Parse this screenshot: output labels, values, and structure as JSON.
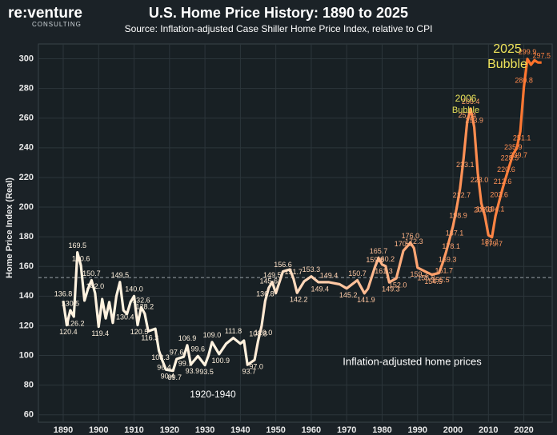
{
  "header": {
    "logo": "re:venture",
    "logo_sub": "CONSULTING"
  },
  "chart_data": {
    "type": "line",
    "title": "U.S. Home Price History: 1890 to 2025",
    "subtitle": "Source: Inflation-adjusted Case Shiller Home Price Index, relative to CPI",
    "y_label": "Home Price Index (Real)",
    "annotations": [
      "2006",
      "Bubble",
      "2025",
      "Bubble",
      "Inflation-adjusted home prices",
      "1920-1940"
    ],
    "xlim": [
      1883,
      2028
    ],
    "ylim": [
      55,
      310
    ],
    "xticks": [
      1890,
      1900,
      1910,
      1920,
      1930,
      1940,
      1950,
      1960,
      1970,
      1980,
      1990,
      2000,
      2010,
      2020
    ],
    "yticks": [
      60,
      80,
      100,
      120,
      140,
      160,
      180,
      200,
      220,
      240,
      260,
      280,
      300
    ],
    "grid": true,
    "reference_line": 152.5,
    "color_start": "#fff2df",
    "color_end": "#ff6a1f",
    "series": [
      {
        "name": "Inflation-adjusted home prices",
        "x": [
          1890,
          1891,
          1892,
          1893,
          1894,
          1895,
          1896,
          1897,
          1898,
          1899,
          1900,
          1901,
          1902,
          1903,
          1904,
          1905,
          1906,
          1907,
          1908,
          1909,
          1910,
          1911,
          1912,
          1913,
          1914,
          1916,
          1917,
          1918,
          1919,
          1921,
          1922,
          1924,
          1925,
          1926,
          1928,
          1930,
          1931,
          1932,
          1934,
          1936,
          1938,
          1940,
          1941,
          1942,
          1944,
          1945,
          1946,
          1947,
          1948,
          1949,
          1950,
          1952,
          1954,
          1955,
          1956,
          1958,
          1960,
          1962,
          1965,
          1968,
          1970,
          1973,
          1975,
          1976,
          1978,
          1979,
          1980,
          1981,
          1982,
          1984,
          1986,
          1988,
          1989,
          1990,
          1992,
          1994,
          1996,
          1997,
          1998,
          1999,
          2000,
          2001,
          2002,
          2003,
          2004,
          2005,
          2006,
          2007,
          2008,
          2009,
          2010,
          2011,
          2012,
          2013,
          2014,
          2015,
          2016,
          2017,
          2018,
          2019,
          2020,
          2021,
          2022,
          2023,
          2024,
          2025
        ],
        "values": [
          136.8,
          120.4,
          130.5,
          126.2,
          169.5,
          160.6,
          137,
          145,
          150.7,
          142.0,
          119.4,
          138,
          125,
          136,
          122,
          140,
          149.5,
          130.4,
          128,
          136,
          140.0,
          120.5,
          132.6,
          128.2,
          116.3,
          118,
          103.3,
          96.4,
          90.4,
          89.7,
          97.6,
          99.1,
          106.9,
          93.9,
          99.6,
          93.5,
          100,
          109.0,
          100.9,
          108,
          111.8,
          108,
          110,
          93.7,
          97.0,
          109.8,
          120.0,
          136.8,
          145.6,
          149.5,
          142,
          156.6,
          158,
          151.7,
          142.2,
          150,
          153.3,
          149.4,
          149.4,
          148,
          145.2,
          150.7,
          141.9,
          145,
          159.8,
          165.7,
          161.3,
          160.2,
          149.3,
          152.0,
          170.6,
          176.0,
          172.3,
          159.2,
          156.8,
          154.5,
          155.5,
          161.7,
          169.3,
          178.1,
          187.1,
          198.9,
          212.7,
          233.1,
          257.4,
          266.4,
          253.9,
          223.0,
          202.6,
          194.1,
          181.1,
          179.7,
          194.1,
          203.6,
          212.6,
          220.6,
          228.5,
          235.9,
          239.7,
          251.1,
          280.8,
          299.9,
          296,
          299,
          297.5,
          297.5
        ],
        "value_labels": [
          "136.8",
          "120.4",
          "130.5",
          "126.2",
          "169.5",
          "160.6",
          null,
          null,
          "150.7",
          "142.0",
          "119.4",
          null,
          null,
          null,
          null,
          null,
          "149.5",
          "130.4",
          null,
          null,
          "140.0",
          "120.5",
          "132.6",
          "128.2",
          "116.3",
          null,
          "103.3",
          "96.4",
          "90.4",
          "89.7",
          "97.6",
          "99.1",
          "106.9",
          "93.9",
          "99.6",
          "93.5",
          null,
          "109.0",
          "100.9",
          null,
          "111.8",
          null,
          null,
          "93.7",
          "97.0",
          "109.8",
          "120.0",
          "136.8",
          "145.6",
          "149.5",
          null,
          "156.6",
          null,
          "151.7",
          "142.2",
          null,
          "153.3",
          "149.4",
          "149.4",
          null,
          "145.2",
          "150.7",
          "141.9",
          null,
          "159.8",
          "165.7",
          "161.3",
          "160.2",
          "149.3",
          "152.0",
          "170.6",
          "176.0",
          "172.3",
          "159.2",
          "156.8",
          "154.5",
          "155.5",
          "161.7",
          "169.3",
          "178.1",
          "187.1",
          "198.9",
          "212.7",
          "233.1",
          "257.4",
          "266.4",
          "253.9",
          "223.0",
          "202.6",
          "194.1",
          "181.1",
          "179.7",
          "194.1",
          "203.6",
          "212.6",
          "220.6",
          "228.5",
          "235.9",
          "239.7",
          "251.1",
          "280.8",
          "299.9",
          null,
          null,
          null,
          "297.5"
        ]
      }
    ]
  }
}
